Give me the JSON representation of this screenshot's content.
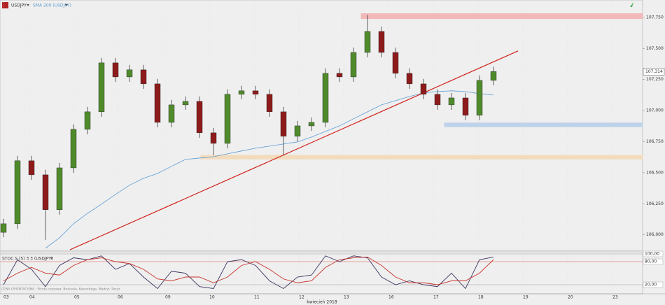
{
  "chart_data": [
    {
      "type": "candlestick",
      "title": "USDJPY",
      "open": [
        106.02,
        106.089,
        106.596,
        106.483,
        106.202,
        106.539,
        106.849,
        106.99,
        107.384,
        107.271,
        107.328,
        107.215,
        106.905,
        107.046,
        107.074,
        106.821,
        106.736,
        107.131,
        107.159,
        107.131,
        106.99,
        106.793,
        106.877,
        106.905,
        107.3,
        107.271,
        107.468,
        107.637,
        107.468,
        107.3,
        107.215,
        107.131,
        107.046,
        107.102,
        106.962,
        107.243
      ],
      "high": [
        106.129,
        106.636,
        106.636,
        106.523,
        106.579,
        106.889,
        107.03,
        107.424,
        107.424,
        107.368,
        107.368,
        107.255,
        107.086,
        107.114,
        107.114,
        106.861,
        107.171,
        107.199,
        107.199,
        107.171,
        107.03,
        106.917,
        106.945,
        107.34,
        107.34,
        107.508,
        107.77,
        107.677,
        107.508,
        107.34,
        107.255,
        107.171,
        107.142,
        107.142,
        107.283,
        107.354
      ],
      "low": [
        105.98,
        106.049,
        106.443,
        105.96,
        106.162,
        106.499,
        106.809,
        106.95,
        107.231,
        107.231,
        107.175,
        106.865,
        106.865,
        107.006,
        106.781,
        106.64,
        106.696,
        107.091,
        107.091,
        106.95,
        106.64,
        106.753,
        106.837,
        106.865,
        107.231,
        107.231,
        107.428,
        107.428,
        107.26,
        107.175,
        107.091,
        107.006,
        107.006,
        106.922,
        106.922,
        107.203
      ],
      "close": [
        106.089,
        106.596,
        106.483,
        106.202,
        106.539,
        106.849,
        106.99,
        107.384,
        107.271,
        107.328,
        107.215,
        106.905,
        107.046,
        107.074,
        106.821,
        106.736,
        107.131,
        107.159,
        107.131,
        106.99,
        106.793,
        106.877,
        106.905,
        107.3,
        107.271,
        107.468,
        107.637,
        107.468,
        107.3,
        107.215,
        107.131,
        107.046,
        107.102,
        106.962,
        107.243,
        107.314
      ],
      "up_color": "#4f8a2b",
      "down_color": "#8e1b1b",
      "series": [
        {
          "name": "SMA 200 (USDJPY)",
          "color": "#5b9bd5",
          "values": [
            null,
            null,
            null,
            105.892,
            105.976,
            106.089,
            106.173,
            106.247,
            106.325,
            106.399,
            106.455,
            106.494,
            106.551,
            106.607,
            106.618,
            106.629,
            106.652,
            106.675,
            106.697,
            106.714,
            106.731,
            106.748,
            106.787,
            106.832,
            106.877,
            106.934,
            106.99,
            107.046,
            107.08,
            107.114,
            107.142,
            107.153,
            107.159,
            107.153,
            107.136,
            107.125
          ]
        }
      ],
      "zones": [
        {
          "start": 25.55,
          "low": 107.74,
          "high": 107.78,
          "color": "#f2b8b8"
        },
        {
          "start": 31.5,
          "low": 106.87,
          "high": 106.9,
          "color": "#bcd3ea"
        },
        {
          "start": 14.1,
          "low": 106.61,
          "high": 106.64,
          "color": "#f3dcbc"
        }
      ],
      "trendline": {
        "start": [
          4.75,
          105.88
        ],
        "end": [
          36.75,
          107.48
        ],
        "color": "#d0221b"
      },
      "last_price": {
        "value": 107.314,
        "label": "107,314"
      },
      "xlim": [
        -0.25,
        45.65
      ],
      "ylim": [
        105.88,
        107.89
      ],
      "yticks": [
        {
          "value": 106.0,
          "label": "106,000"
        },
        {
          "value": 106.25,
          "label": "106,250"
        },
        {
          "value": 106.5,
          "label": "106,500"
        },
        {
          "value": 106.75,
          "label": "106,750"
        },
        {
          "value": 107.0,
          "label": "107,000"
        },
        {
          "value": 107.25,
          "label": "107,250"
        },
        {
          "value": 107.5,
          "label": "107,500"
        },
        {
          "value": 107.75,
          "label": "107,750"
        }
      ],
      "xticks": [
        {
          "value": 0,
          "label": "03"
        },
        {
          "value": 1.85,
          "label": "04"
        },
        {
          "value": 5.05,
          "label": "05"
        },
        {
          "value": 8.15,
          "label": "06"
        },
        {
          "value": 11.55,
          "label": "09"
        },
        {
          "value": 14.7,
          "label": "10"
        },
        {
          "value": 17.9,
          "label": "11"
        },
        {
          "value": 21.1,
          "label": "12"
        },
        {
          "value": 24.3,
          "label": "13"
        },
        {
          "value": 27.5,
          "label": "16"
        },
        {
          "value": 30.7,
          "label": "17"
        },
        {
          "value": 33.9,
          "label": "18"
        },
        {
          "value": 37.1,
          "label": "19"
        },
        {
          "value": 40.3,
          "label": "20"
        },
        {
          "value": 43.5,
          "label": "23"
        }
      ],
      "xlabel": "kwiecień 2018",
      "note": "CENA ORIENTACYJNA · Strefa czasowa: Bruksela, Kopenhaga, Madryt, Paryż"
    },
    {
      "type": "line",
      "title": "STOC S (5) 3 3 (USDJPY)",
      "series": [
        {
          "color": "#3b3560",
          "values": [
            20,
            85,
            60,
            15,
            70,
            90,
            85,
            95,
            60,
            75,
            40,
            10,
            55,
            50,
            15,
            10,
            80,
            85,
            70,
            30,
            10,
            40,
            45,
            95,
            80,
            95,
            90,
            40,
            20,
            30,
            20,
            15,
            50,
            10,
            85,
            92
          ]
        },
        {
          "color": "#c8322b",
          "values": [
            30,
            50,
            65,
            50,
            45,
            70,
            85,
            90,
            80,
            75,
            60,
            35,
            30,
            40,
            40,
            25,
            40,
            70,
            80,
            60,
            35,
            25,
            30,
            65,
            85,
            90,
            92,
            70,
            40,
            25,
            25,
            20,
            30,
            30,
            50,
            85
          ]
        }
      ],
      "ylim": [
        0,
        100
      ],
      "yticks": [
        {
          "value": 100,
          "label": "100,00"
        },
        {
          "value": 80,
          "label": "80,00"
        },
        {
          "value": 20,
          "label": "20,00"
        }
      ]
    }
  ]
}
